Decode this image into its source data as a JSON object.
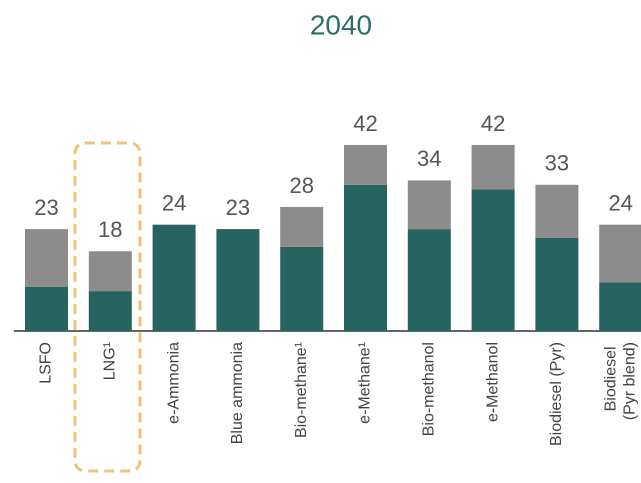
{
  "chart_data": {
    "type": "stacked_bar",
    "title": "2040",
    "categories": [
      "LSFO",
      "LNG¹",
      "e-Ammonia",
      "Blue ammonia",
      "Bio-methane¹",
      "e-Methane¹",
      "Bio-methanol",
      "e-Methanol",
      "Biodiesel (Pyr)",
      "Biodiesel (Pyr blend)"
    ],
    "series": [
      {
        "color": "#27645f",
        "values": [
          10,
          9,
          24,
          23,
          19,
          33,
          23,
          32,
          21,
          11
        ]
      },
      {
        "color": "#8c8c8c",
        "values": [
          13,
          9,
          0,
          0,
          9,
          9,
          11,
          10,
          12,
          13
        ]
      }
    ],
    "totals": [
      23,
      18,
      24,
      23,
      28,
      42,
      34,
      42,
      33,
      24
    ],
    "ylim": [
      0,
      50
    ],
    "grid": false
  }
}
